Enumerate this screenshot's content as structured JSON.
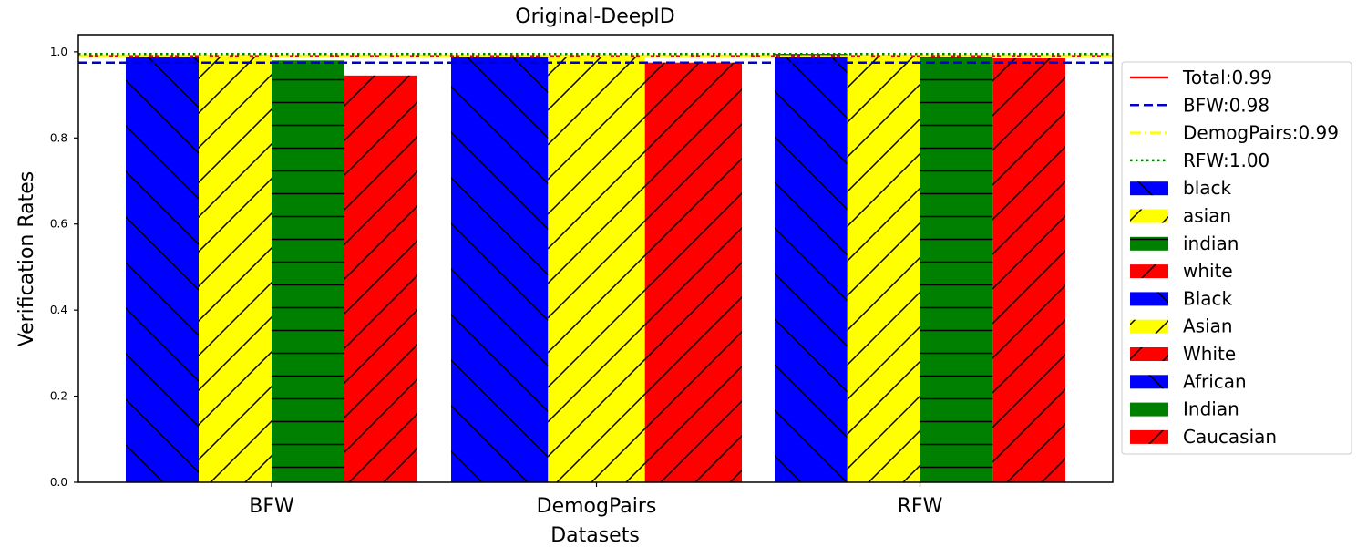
{
  "chart_data": {
    "type": "bar",
    "title": "Original-DeepID",
    "xlabel": "Datasets",
    "ylabel": "Verification Rates",
    "ylim": [
      0,
      1.04
    ],
    "yticks": [
      "0.0",
      "0.2",
      "0.4",
      "0.6",
      "0.8",
      "1.0"
    ],
    "grid": false,
    "legend_placement": "outside-right",
    "groups": [
      {
        "name": "BFW",
        "bars": [
          {
            "label": "black",
            "value": 0.99,
            "color": "#0000ff",
            "hatch": "back"
          },
          {
            "label": "asian",
            "value": 0.99,
            "color": "#ffff00",
            "hatch": "fwd"
          },
          {
            "label": "indian",
            "value": 0.98,
            "color": "#008000",
            "hatch": "horiz"
          },
          {
            "label": "white",
            "value": 0.945,
            "color": "#ff0000",
            "hatch": "fwd"
          }
        ]
      },
      {
        "name": "DemogPairs",
        "bars": [
          {
            "label": "Black",
            "value": 0.99,
            "color": "#0000ff",
            "hatch": "back"
          },
          {
            "label": "Asian",
            "value": 0.99,
            "color": "#ffff00",
            "hatch": "fwd"
          },
          {
            "label": "White",
            "value": 0.975,
            "color": "#ff0000",
            "hatch": "fwd"
          }
        ]
      },
      {
        "name": "RFW",
        "bars": [
          {
            "label": "African",
            "value": 0.995,
            "color": "#0000ff",
            "hatch": "back"
          },
          {
            "label": "Asian",
            "value": 0.99,
            "color": "#ffff00",
            "hatch": "fwd"
          },
          {
            "label": "Indian",
            "value": 0.99,
            "color": "#008000",
            "hatch": "horiz"
          },
          {
            "label": "Caucasian",
            "value": 0.985,
            "color": "#ff0000",
            "hatch": "fwd"
          }
        ]
      }
    ],
    "reference_lines": [
      {
        "label": "Total:0.99",
        "value": 0.99,
        "color": "#ff0000",
        "style": "solid"
      },
      {
        "label": "BFW:0.98",
        "value": 0.975,
        "color": "#0000cc",
        "style": "dashed"
      },
      {
        "label": "DemogPairs:0.99",
        "value": 0.99,
        "color": "#ffff00",
        "style": "dashdot"
      },
      {
        "label": "RFW:1.00",
        "value": 0.995,
        "color": "#008000",
        "style": "dotted"
      }
    ],
    "legend": [
      {
        "kind": "line",
        "label": "Total:0.99",
        "color": "#ff0000",
        "style": "solid"
      },
      {
        "kind": "line",
        "label": "BFW:0.98",
        "color": "#0000cc",
        "style": "dashed"
      },
      {
        "kind": "line",
        "label": "DemogPairs:0.99",
        "color": "#ffff00",
        "style": "dashdot"
      },
      {
        "kind": "line",
        "label": "RFW:1.00",
        "color": "#008000",
        "style": "dotted"
      },
      {
        "kind": "patch",
        "label": "black",
        "color": "#0000ff",
        "hatch": "back"
      },
      {
        "kind": "patch",
        "label": "asian",
        "color": "#ffff00",
        "hatch": "fwd"
      },
      {
        "kind": "patch",
        "label": "indian",
        "color": "#008000",
        "hatch": "horiz"
      },
      {
        "kind": "patch",
        "label": "white",
        "color": "#ff0000",
        "hatch": "fwd"
      },
      {
        "kind": "patch",
        "label": "Black",
        "color": "#0000ff",
        "hatch": "back"
      },
      {
        "kind": "patch",
        "label": "Asian",
        "color": "#ffff00",
        "hatch": "fwd"
      },
      {
        "kind": "patch",
        "label": "White",
        "color": "#ff0000",
        "hatch": "fwd"
      },
      {
        "kind": "patch",
        "label": "African",
        "color": "#0000ff",
        "hatch": "back"
      },
      {
        "kind": "patch",
        "label": "Indian",
        "color": "#008000",
        "hatch": "horiz"
      },
      {
        "kind": "patch",
        "label": "Caucasian",
        "color": "#ff0000",
        "hatch": "fwd"
      }
    ]
  }
}
